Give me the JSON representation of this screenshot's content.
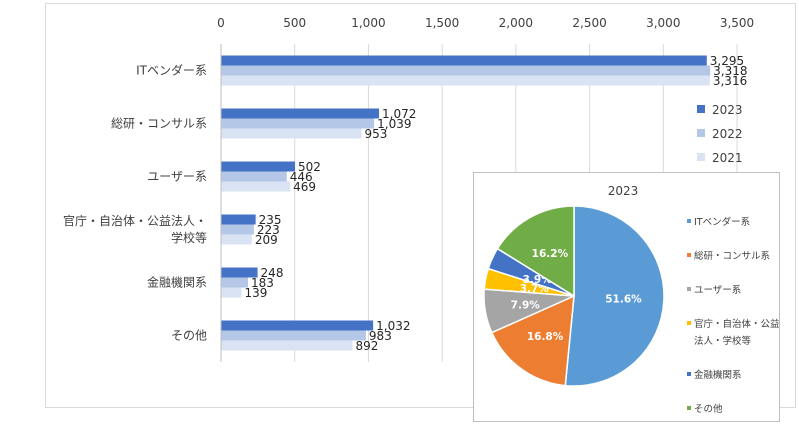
{
  "chart_data": [
    {
      "type": "bar",
      "orientation": "horizontal",
      "categories": [
        "ITベンダー系",
        "総研・コンサル系",
        "ユーザー系",
        "官庁・自治体・公益法人・学校等",
        "金融機関系",
        "その他"
      ],
      "category_lines": [
        [
          "ITベンダー系"
        ],
        [
          "総研・コンサル系"
        ],
        [
          "ユーザー系"
        ],
        [
          "官庁・自治体・公益法人・",
          "学校等"
        ],
        [
          "金融機関系"
        ],
        [
          "その他"
        ]
      ],
      "series": [
        {
          "name": "2023",
          "color": "#4472c4",
          "values": [
            3295,
            1072,
            502,
            235,
            248,
            1032
          ],
          "labels": [
            "3,295",
            "1,072",
            "502",
            "235",
            "248",
            "1,032"
          ]
        },
        {
          "name": "2022",
          "color": "#b4c7e7",
          "values": [
            3318,
            1039,
            446,
            223,
            183,
            983
          ],
          "labels": [
            "3,318",
            "1,039",
            "446",
            "223",
            "183",
            "983"
          ]
        },
        {
          "name": "2021",
          "color": "#dae3f3",
          "values": [
            3316,
            953,
            469,
            209,
            139,
            892
          ],
          "labels": [
            "3,316",
            "953",
            "469",
            "209",
            "139",
            "892"
          ]
        }
      ],
      "xlim": [
        0,
        3500
      ],
      "ticks": [
        0,
        500,
        1000,
        1500,
        2000,
        2500,
        3000,
        3500
      ],
      "tick_labels": [
        "0",
        "500",
        "1,000",
        "1,500",
        "2,000",
        "2,500",
        "3,000",
        "3,500"
      ],
      "grid": true,
      "legend_position": "right"
    },
    {
      "type": "pie",
      "title": "2023",
      "slices": [
        {
          "label": "ITベンダー系",
          "legend_lines": [
            "ITベンダー系"
          ],
          "value": 51.6,
          "display": "51.6%",
          "color": "#5b9bd5"
        },
        {
          "label": "総研・コンサル系",
          "legend_lines": [
            "総研・コンサル系"
          ],
          "value": 16.8,
          "display": "16.8%",
          "color": "#ed7d31"
        },
        {
          "label": "ユーザー系",
          "legend_lines": [
            "ユーザー系"
          ],
          "value": 7.9,
          "display": "7.9%",
          "color": "#a5a5a5"
        },
        {
          "label": "官庁・自治体・公益法人・学校等",
          "legend_lines": [
            "官庁・自治体・公益",
            "法人・学校等"
          ],
          "value": 3.7,
          "display": "3.7%",
          "color": "#ffc000"
        },
        {
          "label": "金融機関系",
          "legend_lines": [
            "金融機関系"
          ],
          "value": 3.9,
          "display": "3.9%",
          "color": "#4472c4"
        },
        {
          "label": "その他",
          "legend_lines": [
            "その他"
          ],
          "value": 16.2,
          "display": "16.2%",
          "color": "#70ad47"
        }
      ],
      "legend_position": "right"
    }
  ]
}
